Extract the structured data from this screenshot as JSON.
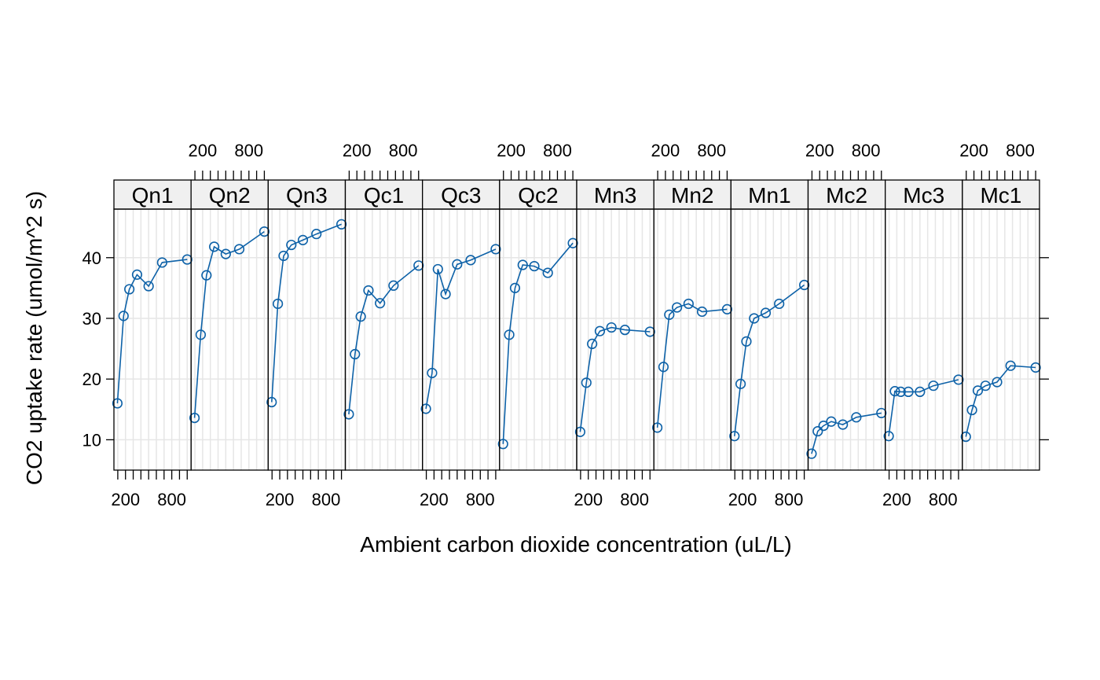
{
  "chart_data": {
    "type": "line",
    "xlabel": "Ambient carbon dioxide concentration (uL/L)",
    "ylabel": "CO2 uptake rate (umol/m^2 s)",
    "x_ticks": [
      200,
      800
    ],
    "y_ticks": [
      10,
      20,
      30,
      40
    ],
    "xlim": [
      50,
      1050
    ],
    "ylim": [
      5,
      48
    ],
    "grid": true,
    "color": "#0E62A8",
    "x": [
      95,
      175,
      250,
      350,
      500,
      675,
      1000
    ],
    "panels": [
      {
        "name": "Qn1",
        "values": [
          16.0,
          30.4,
          34.8,
          37.2,
          35.3,
          39.2,
          39.7
        ]
      },
      {
        "name": "Qn2",
        "values": [
          13.6,
          27.3,
          37.1,
          41.8,
          40.6,
          41.4,
          44.3
        ]
      },
      {
        "name": "Qn3",
        "values": [
          16.2,
          32.4,
          40.3,
          42.1,
          42.9,
          43.9,
          45.5
        ]
      },
      {
        "name": "Qc1",
        "values": [
          14.2,
          24.1,
          30.3,
          34.6,
          32.5,
          35.4,
          38.7
        ]
      },
      {
        "name": "Qc3",
        "values": [
          15.1,
          21.0,
          38.1,
          34.0,
          38.9,
          39.6,
          41.4
        ]
      },
      {
        "name": "Qc2",
        "values": [
          9.3,
          27.3,
          35.0,
          38.8,
          38.6,
          37.5,
          42.4
        ]
      },
      {
        "name": "Mn3",
        "values": [
          11.3,
          19.4,
          25.8,
          27.9,
          28.5,
          28.1,
          27.8
        ]
      },
      {
        "name": "Mn2",
        "values": [
          12.0,
          22.0,
          30.6,
          31.8,
          32.4,
          31.1,
          31.5
        ]
      },
      {
        "name": "Mn1",
        "values": [
          10.6,
          19.2,
          26.2,
          30.0,
          30.9,
          32.4,
          35.5
        ]
      },
      {
        "name": "Mc2",
        "values": [
          7.7,
          11.4,
          12.3,
          13.0,
          12.5,
          13.7,
          14.4
        ]
      },
      {
        "name": "Mc3",
        "values": [
          10.6,
          18.0,
          17.9,
          17.9,
          17.9,
          18.9,
          19.9
        ]
      },
      {
        "name": "Mc1",
        "values": [
          10.5,
          14.9,
          18.1,
          18.9,
          19.5,
          22.2,
          21.9
        ]
      }
    ]
  }
}
